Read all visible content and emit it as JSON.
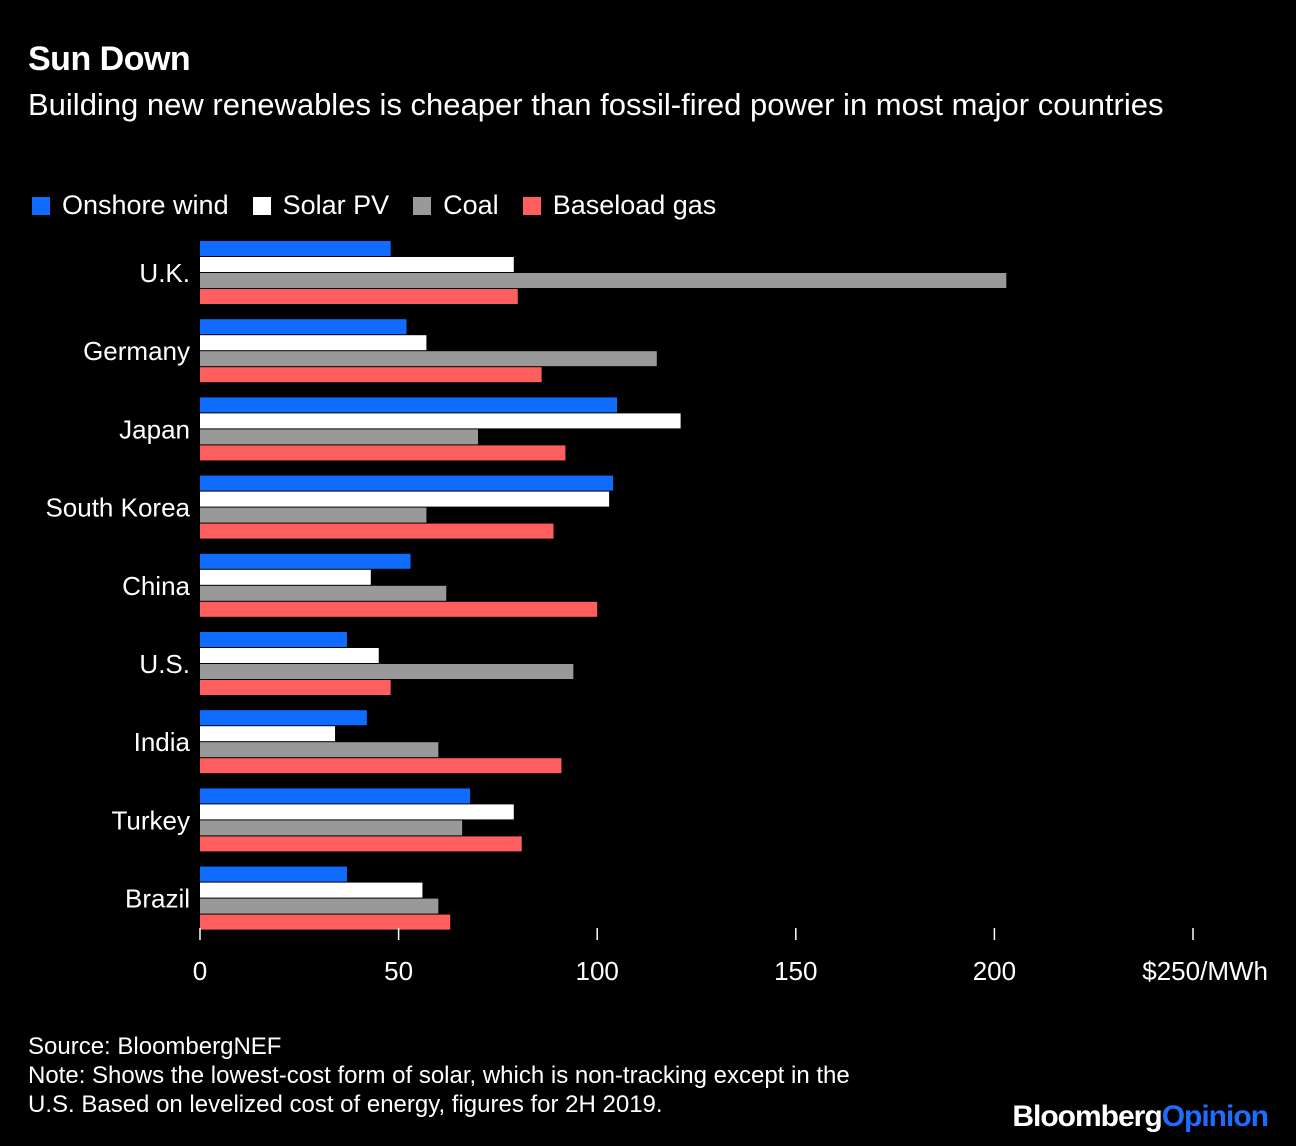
{
  "header": {
    "title": "Sun Down",
    "subtitle": "Building new renewables is cheaper than fossil-fired power in most major countries"
  },
  "footer": {
    "source": "Source: BloombergNEF",
    "note_line1": "Note: Shows the lowest-cost form of solar, which is non-tracking except in the",
    "note_line2": "U.S. Based on levelized cost of energy, figures for 2H 2019."
  },
  "logo": {
    "part1": "Bloomberg",
    "part2": "Opinion"
  },
  "chart_data": {
    "type": "bar",
    "orientation": "horizontal",
    "title": "Sun Down",
    "subtitle": "Building new renewables is cheaper than fossil-fired power in most major countries",
    "xlabel": "",
    "ylabel": "",
    "xlim": [
      0,
      250
    ],
    "x_ticks": [
      0,
      50,
      100,
      150,
      200,
      250
    ],
    "x_tick_labels": [
      "0",
      "50",
      "100",
      "150",
      "200",
      "$250/MWh"
    ],
    "grid": false,
    "legend_position": "top-left",
    "categories": [
      "U.K.",
      "Germany",
      "Japan",
      "South Korea",
      "China",
      "U.S.",
      "India",
      "Turkey",
      "Brazil"
    ],
    "series": [
      {
        "name": "Onshore wind",
        "color": "#0f6cff",
        "values": [
          48,
          52,
          105,
          104,
          53,
          37,
          42,
          68,
          37
        ]
      },
      {
        "name": "Solar PV",
        "color": "#ffffff",
        "values": [
          79,
          57,
          121,
          103,
          43,
          45,
          34,
          79,
          56
        ]
      },
      {
        "name": "Coal",
        "color": "#999999",
        "values": [
          203,
          115,
          70,
          57,
          62,
          94,
          60,
          66,
          60
        ]
      },
      {
        "name": "Baseload gas",
        "color": "#ff5e5e",
        "values": [
          80,
          86,
          92,
          89,
          100,
          48,
          91,
          81,
          63
        ]
      }
    ]
  }
}
